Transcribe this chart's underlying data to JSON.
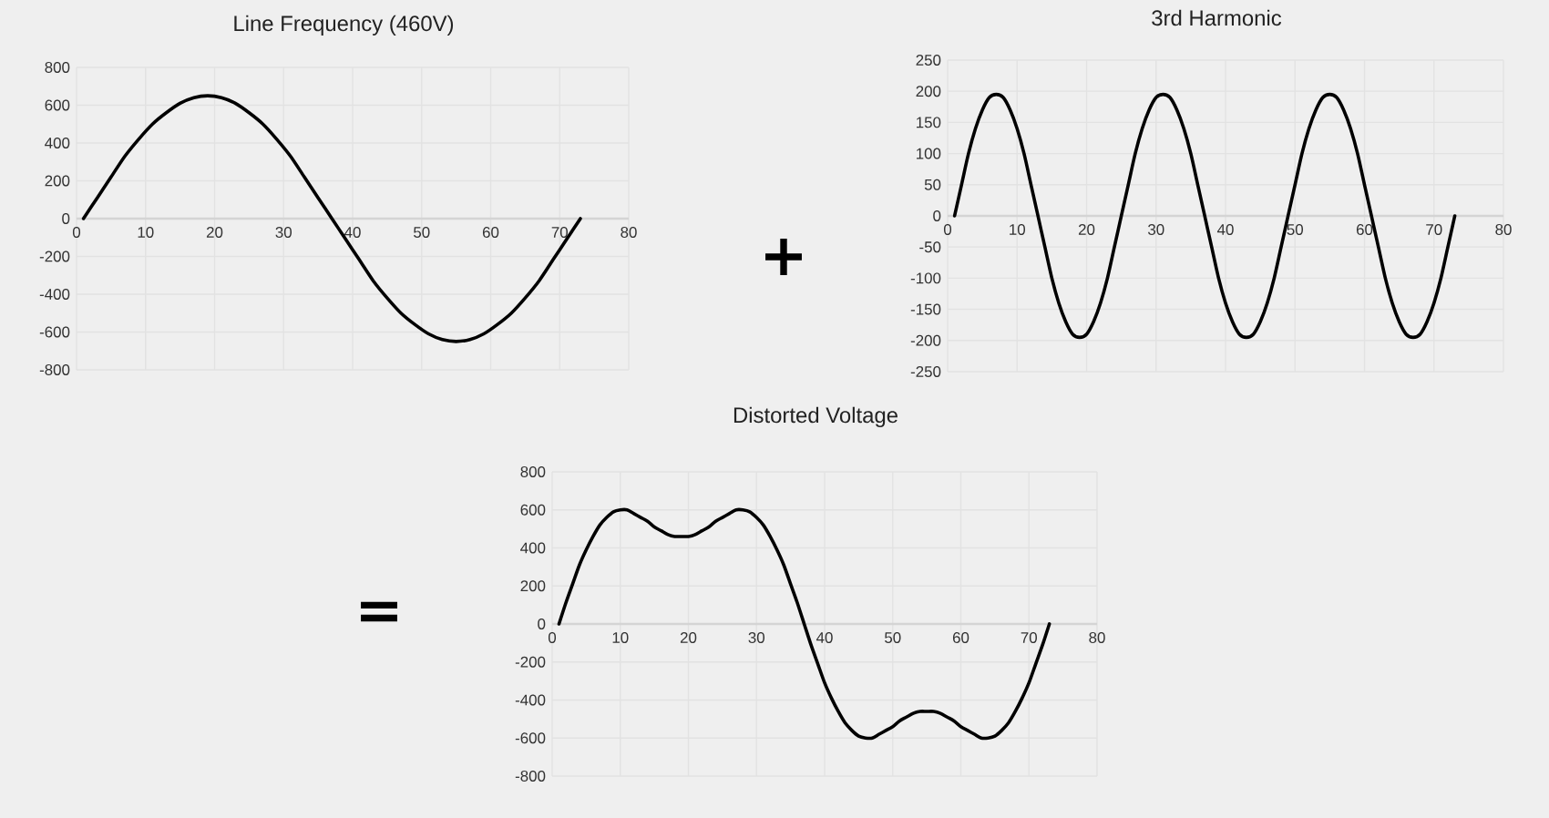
{
  "chart_data": [
    {
      "type": "line",
      "title": "Line Frequency (460V)",
      "x": [
        1,
        3,
        5,
        7,
        9,
        11,
        13,
        15,
        17,
        19,
        21,
        23,
        25,
        27,
        29,
        31,
        33,
        35,
        37,
        39,
        41,
        43,
        45,
        47,
        49,
        51,
        53,
        55,
        57,
        59,
        61,
        63,
        65,
        67,
        69,
        71,
        73
      ],
      "values": [
        0,
        110,
        220,
        330,
        420,
        500,
        560,
        610,
        640,
        650,
        640,
        610,
        560,
        500,
        420,
        330,
        220,
        110,
        0,
        -110,
        -220,
        -330,
        -420,
        -500,
        -560,
        -610,
        -640,
        -650,
        -640,
        -610,
        -560,
        -500,
        -420,
        -330,
        -220,
        -110,
        0
      ],
      "color": "#000000",
      "xlim": [
        0,
        80
      ],
      "xticks": [
        0,
        10,
        20,
        30,
        40,
        50,
        60,
        70,
        80
      ],
      "ylim": [
        -800,
        800
      ],
      "yticks": [
        -800,
        -600,
        -400,
        -200,
        0,
        200,
        400,
        600,
        800
      ],
      "grid": true
    },
    {
      "type": "line",
      "title": "3rd Harmonic",
      "x": [
        1,
        2,
        3,
        4,
        5,
        6,
        7,
        8,
        9,
        10,
        11,
        12,
        13,
        14,
        15,
        16,
        17,
        18,
        19,
        20,
        21,
        22,
        23,
        24,
        25,
        26,
        27,
        28,
        29,
        30,
        31,
        32,
        33,
        34,
        35,
        36,
        37,
        38,
        39,
        40,
        41,
        42,
        43,
        44,
        45,
        46,
        47,
        48,
        49,
        50,
        51,
        52,
        53,
        54,
        55,
        56,
        57,
        58,
        59,
        60,
        61,
        62,
        63,
        64,
        65,
        66,
        67,
        68,
        69,
        70,
        71,
        72,
        73
      ],
      "values": [
        0,
        50,
        100,
        140,
        170,
        190,
        195,
        190,
        170,
        140,
        100,
        50,
        0,
        -50,
        -100,
        -140,
        -170,
        -190,
        -195,
        -190,
        -170,
        -140,
        -100,
        -50,
        0,
        50,
        100,
        140,
        170,
        190,
        195,
        190,
        170,
        140,
        100,
        50,
        0,
        -50,
        -100,
        -140,
        -170,
        -190,
        -195,
        -190,
        -170,
        -140,
        -100,
        -50,
        0,
        50,
        100,
        140,
        170,
        190,
        195,
        190,
        170,
        140,
        100,
        50,
        0,
        -50,
        -100,
        -140,
        -170,
        -190,
        -195,
        -190,
        -170,
        -140,
        -100,
        -50,
        0
      ],
      "color": "#000000",
      "xlim": [
        0,
        80
      ],
      "xticks": [
        0,
        10,
        20,
        30,
        40,
        50,
        60,
        70,
        80
      ],
      "ylim": [
        -250,
        250
      ],
      "yticks": [
        -250,
        -200,
        -150,
        -100,
        -50,
        0,
        50,
        100,
        150,
        200,
        250
      ],
      "grid": true,
      "annotations": [
        "+"
      ]
    },
    {
      "type": "line",
      "title": "Distorted Voltage",
      "x": [
        1,
        2,
        3,
        4,
        5,
        6,
        7,
        8,
        9,
        10,
        11,
        12,
        13,
        14,
        15,
        16,
        17,
        18,
        19,
        20,
        21,
        22,
        23,
        24,
        25,
        26,
        27,
        28,
        29,
        30,
        31,
        32,
        33,
        34,
        35,
        36,
        37,
        38,
        39,
        40,
        41,
        42,
        43,
        44,
        45,
        46,
        47,
        48,
        49,
        50,
        51,
        52,
        53,
        54,
        55,
        56,
        57,
        58,
        59,
        60,
        61,
        62,
        63,
        64,
        65,
        66,
        67,
        68,
        69,
        70,
        71,
        72,
        73
      ],
      "values": [
        0,
        110,
        210,
        310,
        390,
        460,
        520,
        560,
        590,
        600,
        600,
        580,
        560,
        540,
        510,
        490,
        470,
        460,
        460,
        460,
        470,
        490,
        510,
        540,
        560,
        580,
        600,
        600,
        590,
        560,
        520,
        460,
        390,
        310,
        210,
        110,
        0,
        -110,
        -210,
        -310,
        -390,
        -460,
        -520,
        -560,
        -590,
        -600,
        -600,
        -580,
        -560,
        -540,
        -510,
        -490,
        -470,
        -460,
        -460,
        -460,
        -470,
        -490,
        -510,
        -540,
        -560,
        -580,
        -600,
        -600,
        -590,
        -560,
        -520,
        -460,
        -390,
        -310,
        -210,
        -110,
        0
      ],
      "color": "#000000",
      "xlim": [
        0,
        80
      ],
      "xticks": [
        0,
        10,
        20,
        30,
        40,
        50,
        60,
        70,
        80
      ],
      "ylim": [
        -800,
        800
      ],
      "yticks": [
        -800,
        -600,
        -400,
        -200,
        0,
        200,
        400,
        600,
        800
      ],
      "grid": true,
      "annotations": [
        "="
      ]
    }
  ]
}
